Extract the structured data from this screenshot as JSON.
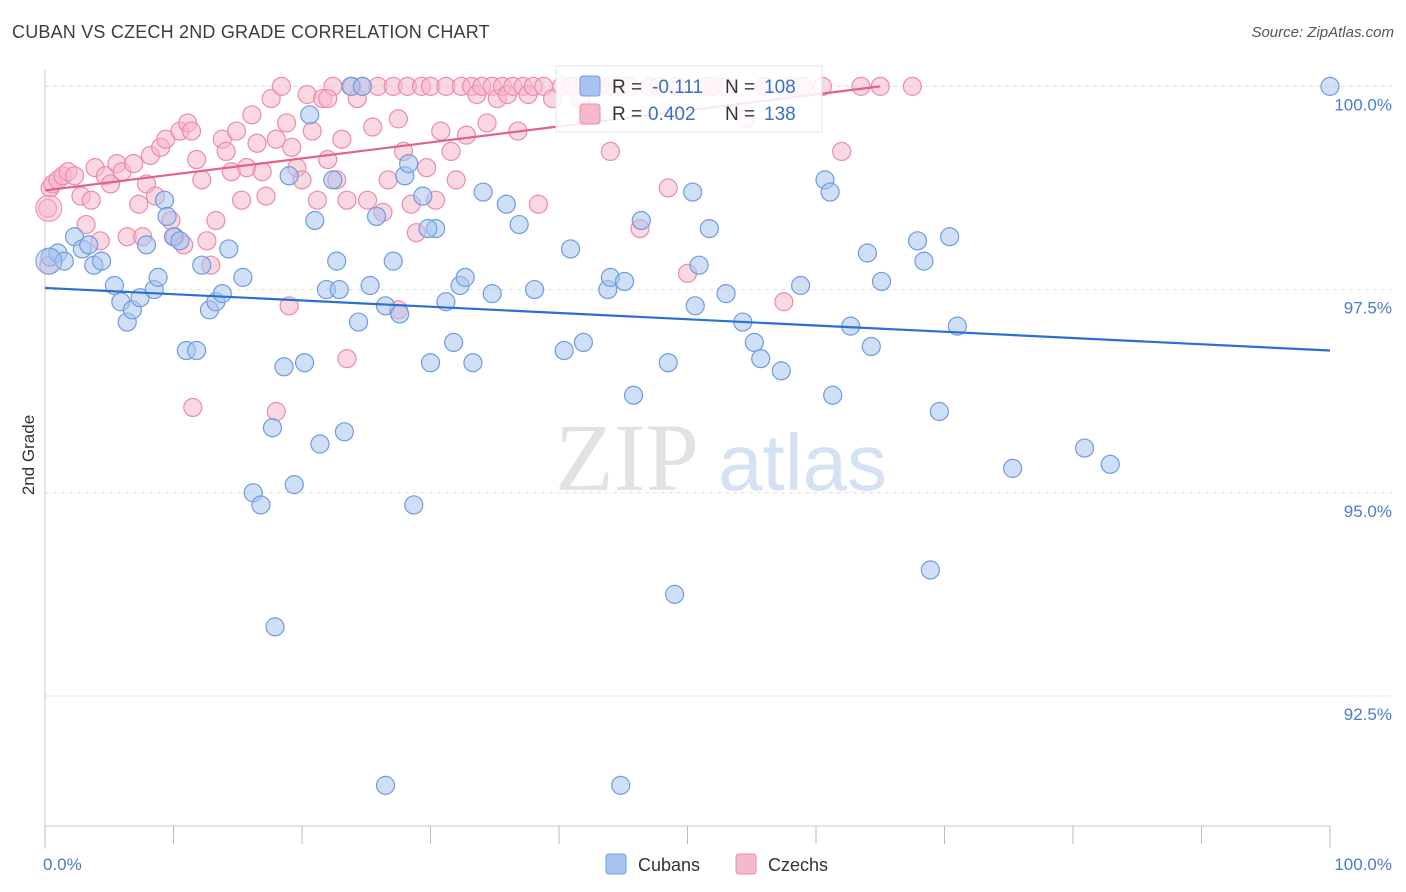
{
  "title": "CUBAN VS CZECH 2ND GRADE CORRELATION CHART",
  "source": "Source: ZipAtlas.com",
  "watermark": {
    "zip": "ZIP",
    "atlas": "atlas"
  },
  "colors": {
    "cubans_fill": "#a8c4ee",
    "cubans_stroke": "#6f9be0",
    "cubans_line": "#2b6fd1",
    "czechs_fill": "#f6b8cb",
    "czechs_stroke": "#ec8bab",
    "czechs_line": "#e4608c",
    "axis_text": "#4a7cc9",
    "grid": "#dddddd"
  },
  "legend_box": {
    "rows": [
      {
        "r_label": "R =",
        "r_value": "-0.111",
        "n_label": "N =",
        "n_value": "108"
      },
      {
        "r_label": "R =",
        "r_value": "0.402",
        "n_label": "N =",
        "n_value": "138"
      }
    ]
  },
  "chart_data": {
    "type": "scatter",
    "xlabel": "",
    "ylabel": "2nd Grade",
    "xlim": [
      0,
      100
    ],
    "ylim": [
      90.9,
      100.3
    ],
    "x_tick_labels": [
      "0.0%",
      "100.0%"
    ],
    "y_ticks": [
      {
        "value": 92.5,
        "label": "92.5%"
      },
      {
        "value": 95.0,
        "label": "95.0%"
      },
      {
        "value": 97.5,
        "label": "97.5%"
      },
      {
        "value": 100.0,
        "label": "100.0%"
      }
    ],
    "grid": "horizontal dashed",
    "legend_position": "bottom-center",
    "series": [
      {
        "name": "Cubans",
        "r": -0.111,
        "n": 108,
        "trend": {
          "x0": 0,
          "y0": 97.52,
          "x1": 100,
          "y1": 96.75
        },
        "points": [
          [
            0.4,
            97.9
          ],
          [
            1.0,
            97.95
          ],
          [
            1.5,
            97.85
          ],
          [
            2.3,
            98.15
          ],
          [
            2.9,
            98.0
          ],
          [
            3.4,
            98.05
          ],
          [
            3.8,
            97.8
          ],
          [
            4.4,
            97.85
          ],
          [
            5.4,
            97.55
          ],
          [
            5.9,
            97.35
          ],
          [
            6.4,
            97.1
          ],
          [
            6.8,
            97.25
          ],
          [
            7.4,
            97.4
          ],
          [
            7.9,
            98.05
          ],
          [
            8.5,
            97.5
          ],
          [
            8.8,
            97.65
          ],
          [
            9.3,
            98.6
          ],
          [
            9.5,
            98.4
          ],
          [
            10.0,
            98.15
          ],
          [
            10.5,
            98.1
          ],
          [
            11.0,
            96.75
          ],
          [
            11.8,
            96.75
          ],
          [
            12.2,
            97.8
          ],
          [
            12.8,
            97.25
          ],
          [
            13.3,
            97.35
          ],
          [
            13.8,
            97.45
          ],
          [
            14.3,
            98.0
          ],
          [
            15.4,
            97.65
          ],
          [
            16.2,
            95.0
          ],
          [
            16.8,
            94.85
          ],
          [
            17.7,
            95.8
          ],
          [
            17.9,
            93.35
          ],
          [
            18.6,
            96.55
          ],
          [
            19.0,
            98.9
          ],
          [
            19.4,
            95.1
          ],
          [
            20.2,
            96.6
          ],
          [
            20.6,
            99.65
          ],
          [
            21.0,
            98.35
          ],
          [
            21.4,
            95.6
          ],
          [
            21.9,
            97.5
          ],
          [
            22.4,
            98.85
          ],
          [
            22.7,
            97.85
          ],
          [
            23.3,
            95.75
          ],
          [
            23.8,
            100.0
          ],
          [
            24.4,
            97.1
          ],
          [
            24.7,
            100.0
          ],
          [
            25.3,
            97.55
          ],
          [
            25.8,
            98.4
          ],
          [
            26.5,
            97.3
          ],
          [
            26.5,
            91.4
          ],
          [
            27.1,
            97.85
          ],
          [
            27.6,
            97.2
          ],
          [
            28.0,
            98.9
          ],
          [
            28.3,
            99.05
          ],
          [
            28.7,
            94.85
          ],
          [
            29.4,
            98.65
          ],
          [
            30.0,
            96.6
          ],
          [
            30.4,
            98.25
          ],
          [
            31.2,
            97.35
          ],
          [
            31.8,
            96.85
          ],
          [
            32.3,
            97.55
          ],
          [
            32.7,
            97.65
          ],
          [
            33.3,
            96.6
          ],
          [
            34.1,
            98.7
          ],
          [
            34.8,
            97.45
          ],
          [
            35.9,
            98.55
          ],
          [
            36.9,
            98.3
          ],
          [
            40.4,
            96.75
          ],
          [
            40.9,
            98.0
          ],
          [
            41.9,
            96.85
          ],
          [
            43.8,
            97.5
          ],
          [
            44.0,
            97.65
          ],
          [
            45.1,
            97.6
          ],
          [
            44.8,
            91.4
          ],
          [
            45.8,
            96.2
          ],
          [
            46.4,
            98.35
          ],
          [
            48.5,
            96.6
          ],
          [
            49.0,
            93.75
          ],
          [
            50.4,
            98.7
          ],
          [
            50.9,
            97.8
          ],
          [
            51.7,
            98.25
          ],
          [
            53.0,
            97.45
          ],
          [
            54.3,
            97.1
          ],
          [
            55.2,
            96.85
          ],
          [
            55.7,
            96.65
          ],
          [
            57.3,
            96.5
          ],
          [
            58.8,
            97.55
          ],
          [
            60.7,
            98.85
          ],
          [
            61.1,
            98.7
          ],
          [
            61.3,
            96.2
          ],
          [
            62.7,
            97.05
          ],
          [
            64.0,
            97.95
          ],
          [
            64.3,
            96.8
          ],
          [
            65.1,
            97.6
          ],
          [
            67.9,
            98.1
          ],
          [
            68.4,
            97.85
          ],
          [
            68.9,
            94.05
          ],
          [
            69.6,
            96.0
          ],
          [
            70.4,
            98.15
          ],
          [
            71.0,
            97.05
          ],
          [
            75.3,
            95.3
          ],
          [
            80.9,
            95.55
          ],
          [
            82.9,
            95.35
          ],
          [
            100.0,
            100.0
          ],
          [
            22.9,
            97.5
          ],
          [
            38.1,
            97.5
          ],
          [
            29.8,
            98.25
          ],
          [
            50.6,
            97.3
          ]
        ]
      },
      {
        "name": "Czechs",
        "r": 0.402,
        "n": 138,
        "trend": {
          "x0": 0,
          "y0": 98.72,
          "x1": 65,
          "y1": 100.0
        },
        "points": [
          [
            0.2,
            98.5
          ],
          [
            0.4,
            98.75
          ],
          [
            0.6,
            98.8
          ],
          [
            1.0,
            98.85
          ],
          [
            1.4,
            98.9
          ],
          [
            1.8,
            98.95
          ],
          [
            2.3,
            98.9
          ],
          [
            2.8,
            98.65
          ],
          [
            3.2,
            98.3
          ],
          [
            3.6,
            98.6
          ],
          [
            3.9,
            99.0
          ],
          [
            4.3,
            98.1
          ],
          [
            4.7,
            98.9
          ],
          [
            5.1,
            98.8
          ],
          [
            5.6,
            99.05
          ],
          [
            6.0,
            98.95
          ],
          [
            6.4,
            98.15
          ],
          [
            6.9,
            99.05
          ],
          [
            7.3,
            98.55
          ],
          [
            7.6,
            98.15
          ],
          [
            7.9,
            98.8
          ],
          [
            8.2,
            99.15
          ],
          [
            8.6,
            98.65
          ],
          [
            9.0,
            99.25
          ],
          [
            9.4,
            99.35
          ],
          [
            9.8,
            98.35
          ],
          [
            10.1,
            98.15
          ],
          [
            10.5,
            99.45
          ],
          [
            10.8,
            98.05
          ],
          [
            11.1,
            99.55
          ],
          [
            11.4,
            99.45
          ],
          [
            11.8,
            99.1
          ],
          [
            12.2,
            98.85
          ],
          [
            12.6,
            98.1
          ],
          [
            12.9,
            97.8
          ],
          [
            13.3,
            98.35
          ],
          [
            13.8,
            99.35
          ],
          [
            14.1,
            99.2
          ],
          [
            14.5,
            98.95
          ],
          [
            14.9,
            99.45
          ],
          [
            15.3,
            98.6
          ],
          [
            15.7,
            99.0
          ],
          [
            16.1,
            99.65
          ],
          [
            16.5,
            99.3
          ],
          [
            16.9,
            98.95
          ],
          [
            17.2,
            98.65
          ],
          [
            17.6,
            99.85
          ],
          [
            18.0,
            99.35
          ],
          [
            18.4,
            100.0
          ],
          [
            18.8,
            99.55
          ],
          [
            19.2,
            99.25
          ],
          [
            19.6,
            99.0
          ],
          [
            20.0,
            98.85
          ],
          [
            20.4,
            99.9
          ],
          [
            20.8,
            99.45
          ],
          [
            21.2,
            98.6
          ],
          [
            21.6,
            99.85
          ],
          [
            22.0,
            99.1
          ],
          [
            22.4,
            100.0
          ],
          [
            22.7,
            98.85
          ],
          [
            23.1,
            99.35
          ],
          [
            23.5,
            98.6
          ],
          [
            23.9,
            100.0
          ],
          [
            24.3,
            99.85
          ],
          [
            24.7,
            100.0
          ],
          [
            25.1,
            98.6
          ],
          [
            25.5,
            99.5
          ],
          [
            25.9,
            100.0
          ],
          [
            26.3,
            98.45
          ],
          [
            26.7,
            98.85
          ],
          [
            27.1,
            100.0
          ],
          [
            27.5,
            99.6
          ],
          [
            27.9,
            99.2
          ],
          [
            28.2,
            100.0
          ],
          [
            28.5,
            98.55
          ],
          [
            28.9,
            98.2
          ],
          [
            29.3,
            100.0
          ],
          [
            29.7,
            99.0
          ],
          [
            30.0,
            100.0
          ],
          [
            30.4,
            98.6
          ],
          [
            30.8,
            99.45
          ],
          [
            31.2,
            100.0
          ],
          [
            31.6,
            99.2
          ],
          [
            32.0,
            98.85
          ],
          [
            32.4,
            100.0
          ],
          [
            32.8,
            99.4
          ],
          [
            33.2,
            100.0
          ],
          [
            33.6,
            99.9
          ],
          [
            34.0,
            100.0
          ],
          [
            34.4,
            99.55
          ],
          [
            34.8,
            100.0
          ],
          [
            35.2,
            99.85
          ],
          [
            35.6,
            100.0
          ],
          [
            36.0,
            99.9
          ],
          [
            36.4,
            100.0
          ],
          [
            36.8,
            99.45
          ],
          [
            37.2,
            100.0
          ],
          [
            37.6,
            99.9
          ],
          [
            38.0,
            100.0
          ],
          [
            38.4,
            98.55
          ],
          [
            38.8,
            100.0
          ],
          [
            39.5,
            99.85
          ],
          [
            40.2,
            100.0
          ],
          [
            41.0,
            100.0
          ],
          [
            41.7,
            99.85
          ],
          [
            42.5,
            100.0
          ],
          [
            43.2,
            100.0
          ],
          [
            44.0,
            99.2
          ],
          [
            44.7,
            100.0
          ],
          [
            45.5,
            100.0
          ],
          [
            46.3,
            98.25
          ],
          [
            47.0,
            100.0
          ],
          [
            47.8,
            100.0
          ],
          [
            48.5,
            98.75
          ],
          [
            49.2,
            100.0
          ],
          [
            50.0,
            97.7
          ],
          [
            51.5,
            100.0
          ],
          [
            53.0,
            100.0
          ],
          [
            54.5,
            99.6
          ],
          [
            56.0,
            100.0
          ],
          [
            57.5,
            97.35
          ],
          [
            59.0,
            100.0
          ],
          [
            60.5,
            100.0
          ],
          [
            62.0,
            99.2
          ],
          [
            63.5,
            100.0
          ],
          [
            65.0,
            100.0
          ],
          [
            67.5,
            100.0
          ],
          [
            11.5,
            96.05
          ],
          [
            18.0,
            96.0
          ],
          [
            19.0,
            97.3
          ],
          [
            23.5,
            96.65
          ],
          [
            27.5,
            97.25
          ],
          [
            0.3,
            97.8
          ],
          [
            22.0,
            99.85
          ],
          [
            42.0,
            100.0
          ],
          [
            44.0,
            100.0
          ],
          [
            58.0,
            100.0
          ],
          [
            52.0,
            100.0
          ]
        ]
      }
    ]
  }
}
